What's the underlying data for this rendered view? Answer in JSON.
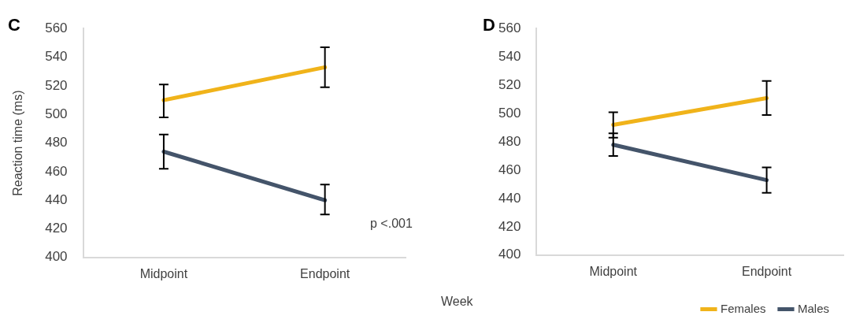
{
  "chart_data": [
    {
      "type": "line",
      "title": "C",
      "ylabel": "Reaction time (ms)",
      "categories": [
        "Midpoint",
        "Endpoint"
      ],
      "ylim": [
        400,
        560
      ],
      "yticks": [
        400,
        420,
        440,
        460,
        480,
        500,
        520,
        540,
        560
      ],
      "grid": false,
      "legend": false,
      "marker": "none",
      "line_style": "solid",
      "annotations": [
        "p <.001"
      ],
      "series": [
        {
          "color": "#f0b31a",
          "values": [
            510,
            533
          ],
          "errors": [
            [
              498,
              521
            ],
            [
              519,
              547
            ]
          ]
        },
        {
          "color": "#44546a",
          "values": [
            474,
            440
          ],
          "errors": [
            [
              462,
              486
            ],
            [
              430,
              451
            ]
          ]
        }
      ]
    },
    {
      "type": "line",
      "title": "D",
      "xlabel": "Week",
      "categories": [
        "Midpoint",
        "Endpoint"
      ],
      "ylim": [
        400,
        560
      ],
      "yticks": [
        400,
        420,
        440,
        460,
        480,
        500,
        520,
        540,
        560
      ],
      "grid": false,
      "legend": "bottom",
      "marker": "none",
      "line_style": "solid",
      "series": [
        {
          "name": "Females",
          "color": "#f0b31a",
          "values": [
            492,
            511
          ],
          "errors": [
            [
              483,
              501
            ],
            [
              499,
              523
            ]
          ]
        },
        {
          "name": "Males",
          "color": "#44546a",
          "values": [
            478,
            453
          ],
          "errors": [
            [
              470,
              486
            ],
            [
              444,
              462
            ]
          ]
        }
      ]
    }
  ]
}
